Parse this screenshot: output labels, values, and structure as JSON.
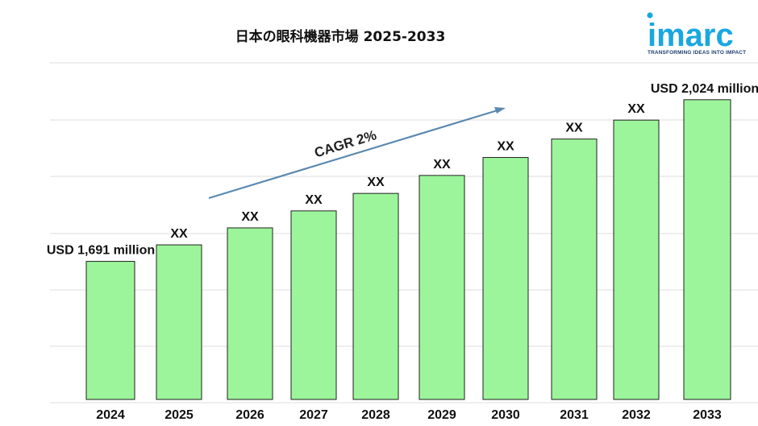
{
  "chart_data": {
    "type": "bar",
    "title": "日本の眼科機器市場  2025-2033",
    "categories": [
      "2024",
      "2025",
      "2026",
      "2027",
      "2028",
      "2029",
      "2030",
      "2031",
      "2032",
      "2033"
    ],
    "values": [
      1691,
      1725,
      1760,
      1795,
      1831,
      1868,
      1905,
      1943,
      1982,
      2024
    ],
    "data_labels": [
      "USD  1,691 million",
      "XX",
      "XX",
      "XX",
      "XX",
      "XX",
      "XX",
      "XX",
      "XX",
      "USD  2,024 million"
    ],
    "ylim": [
      1400,
      2100
    ],
    "grid": true,
    "bar_color": "#9cf59b",
    "bar_edge_color": "#1f1f1f",
    "annotation": {
      "text": "CAGR 2%",
      "arrow_color": "#5b89b0"
    }
  },
  "logo": {
    "name": "imarc",
    "tagline": "TRANSFORMING IDEAS INTO IMPACT",
    "color": "#1c3d6e",
    "accent": "#1aa7e0"
  }
}
